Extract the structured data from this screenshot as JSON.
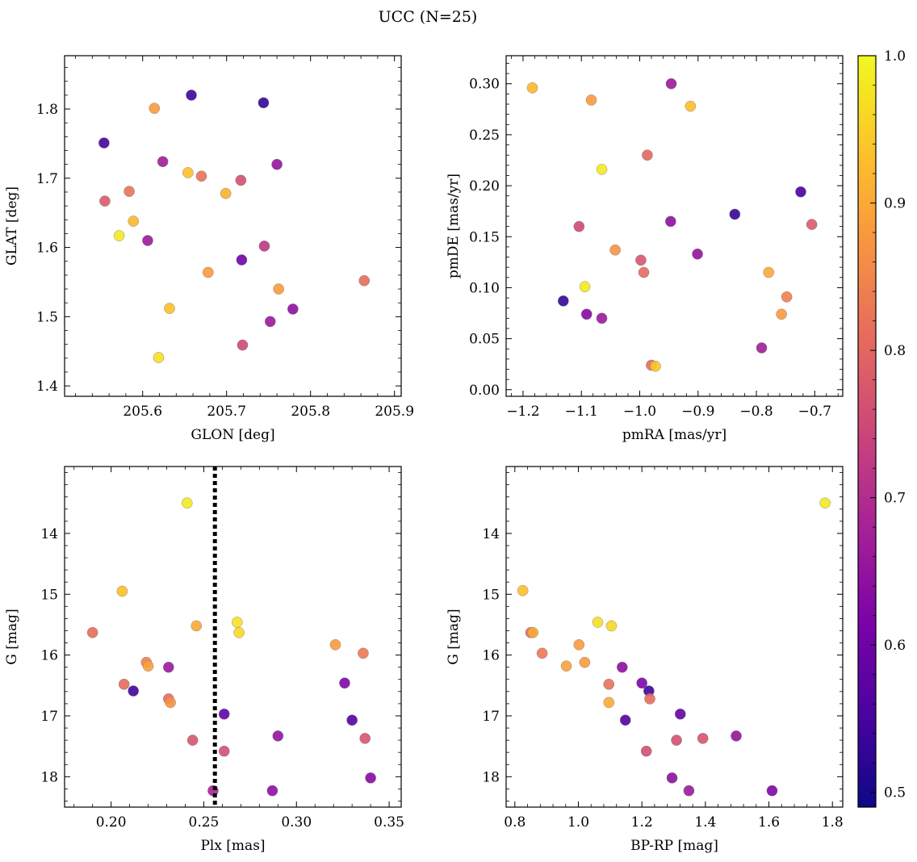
{
  "title": "UCC (N=25)",
  "colormap": "plasma",
  "colorbar": {
    "min": 0.49,
    "max": 1.0,
    "ticks": [
      0.5,
      0.6,
      0.7,
      0.8,
      0.9,
      1.0
    ],
    "tick_labels": [
      "0.5",
      "0.6",
      "0.7",
      "0.8",
      "0.9",
      "1.0"
    ]
  },
  "chart_data": [
    {
      "type": "scatter",
      "name": "glon-glat",
      "xlabel": "GLON [deg]",
      "ylabel": "GLAT [deg]",
      "xlim": [
        205.507,
        205.908
      ],
      "ylim": [
        1.385,
        1.877
      ],
      "xticks": [
        205.6,
        205.7,
        205.8,
        205.9
      ],
      "xtick_labels": [
        "205.6",
        "205.7",
        "205.8",
        "205.9"
      ],
      "yticks": [
        1.4,
        1.5,
        1.6,
        1.7,
        1.8
      ],
      "ytick_labels": [
        "1.4",
        "1.5",
        "1.6",
        "1.7",
        "1.8"
      ],
      "y_inverted": false,
      "points": [
        {
          "x": 205.554,
          "y": 1.751,
          "c": 0.55
        },
        {
          "x": 205.658,
          "y": 1.82,
          "c": 0.54
        },
        {
          "x": 205.744,
          "y": 1.809,
          "c": 0.53
        },
        {
          "x": 205.614,
          "y": 1.801,
          "c": 0.88
        },
        {
          "x": 205.624,
          "y": 1.724,
          "c": 0.67
        },
        {
          "x": 205.654,
          "y": 1.708,
          "c": 0.93
        },
        {
          "x": 205.67,
          "y": 1.703,
          "c": 0.82
        },
        {
          "x": 205.717,
          "y": 1.697,
          "c": 0.76
        },
        {
          "x": 205.76,
          "y": 1.72,
          "c": 0.65
        },
        {
          "x": 205.555,
          "y": 1.667,
          "c": 0.78
        },
        {
          "x": 205.584,
          "y": 1.681,
          "c": 0.82
        },
        {
          "x": 205.699,
          "y": 1.678,
          "c": 0.91
        },
        {
          "x": 205.589,
          "y": 1.638,
          "c": 0.92
        },
        {
          "x": 205.572,
          "y": 1.617,
          "c": 0.98
        },
        {
          "x": 205.606,
          "y": 1.61,
          "c": 0.66
        },
        {
          "x": 205.745,
          "y": 1.602,
          "c": 0.72
        },
        {
          "x": 205.718,
          "y": 1.582,
          "c": 0.6
        },
        {
          "x": 205.678,
          "y": 1.564,
          "c": 0.88
        },
        {
          "x": 205.762,
          "y": 1.54,
          "c": 0.88
        },
        {
          "x": 205.864,
          "y": 1.552,
          "c": 0.81
        },
        {
          "x": 205.632,
          "y": 1.512,
          "c": 0.93
        },
        {
          "x": 205.779,
          "y": 1.511,
          "c": 0.64
        },
        {
          "x": 205.752,
          "y": 1.493,
          "c": 0.66
        },
        {
          "x": 205.719,
          "y": 1.459,
          "c": 0.75
        },
        {
          "x": 205.619,
          "y": 1.441,
          "c": 0.97
        }
      ]
    },
    {
      "type": "scatter",
      "name": "pmra-pmde",
      "xlabel": "pmRA [mas/yr]",
      "ylabel": "pmDE [mas/yr]",
      "xlim": [
        -1.229,
        -0.652
      ],
      "ylim": [
        -0.0065,
        0.3275
      ],
      "xticks": [
        -1.2,
        -1.1,
        -1.0,
        -0.9,
        -0.8,
        -0.7
      ],
      "xtick_labels": [
        "−1.2",
        "−1.1",
        "−1.0",
        "−0.9",
        "−0.8",
        "−0.7"
      ],
      "yticks": [
        0.0,
        0.05,
        0.1,
        0.15,
        0.2,
        0.25,
        0.3
      ],
      "ytick_labels": [
        "0.00",
        "0.05",
        "0.10",
        "0.15",
        "0.20",
        "0.25",
        "0.30"
      ],
      "y_inverted": false,
      "points": [
        {
          "x": -1.184,
          "y": 0.296,
          "c": 0.92
        },
        {
          "x": -1.083,
          "y": 0.284,
          "c": 0.88
        },
        {
          "x": -0.946,
          "y": 0.3,
          "c": 0.66
        },
        {
          "x": -0.913,
          "y": 0.278,
          "c": 0.93
        },
        {
          "x": -0.987,
          "y": 0.23,
          "c": 0.8
        },
        {
          "x": -1.065,
          "y": 0.216,
          "c": 0.98
        },
        {
          "x": -0.724,
          "y": 0.194,
          "c": 0.55
        },
        {
          "x": -1.104,
          "y": 0.16,
          "c": 0.75
        },
        {
          "x": -0.947,
          "y": 0.165,
          "c": 0.64
        },
        {
          "x": -0.837,
          "y": 0.172,
          "c": 0.53
        },
        {
          "x": -0.705,
          "y": 0.162,
          "c": 0.78
        },
        {
          "x": -1.042,
          "y": 0.137,
          "c": 0.87
        },
        {
          "x": -0.998,
          "y": 0.127,
          "c": 0.77
        },
        {
          "x": -0.901,
          "y": 0.133,
          "c": 0.65
        },
        {
          "x": -0.993,
          "y": 0.115,
          "c": 0.81
        },
        {
          "x": -0.779,
          "y": 0.115,
          "c": 0.9
        },
        {
          "x": -1.094,
          "y": 0.101,
          "c": 0.98
        },
        {
          "x": -0.748,
          "y": 0.091,
          "c": 0.84
        },
        {
          "x": -1.131,
          "y": 0.087,
          "c": 0.53
        },
        {
          "x": -1.091,
          "y": 0.074,
          "c": 0.63
        },
        {
          "x": -1.065,
          "y": 0.07,
          "c": 0.66
        },
        {
          "x": -0.757,
          "y": 0.074,
          "c": 0.88
        },
        {
          "x": -0.791,
          "y": 0.041,
          "c": 0.67
        },
        {
          "x": -0.98,
          "y": 0.024,
          "c": 0.81
        },
        {
          "x": -0.973,
          "y": 0.023,
          "c": 0.94
        }
      ]
    },
    {
      "type": "scatter",
      "name": "plx-g",
      "xlabel": "Plx [mas]",
      "ylabel": "G [mag]",
      "xlim": [
        0.1749,
        0.3565
      ],
      "ylim": [
        12.9,
        18.5
      ],
      "xticks": [
        0.2,
        0.25,
        0.3,
        0.35
      ],
      "xtick_labels": [
        "0.20",
        "0.25",
        "0.30",
        "0.35"
      ],
      "yticks": [
        14,
        15,
        16,
        17,
        18
      ],
      "ytick_labels": [
        "14",
        "15",
        "16",
        "17",
        "18"
      ],
      "y_inverted": true,
      "vline": 0.256,
      "points": [
        {
          "x": 0.241,
          "y": 13.5,
          "c": 0.98
        },
        {
          "x": 0.206,
          "y": 14.95,
          "c": 0.93
        },
        {
          "x": 0.19,
          "y": 15.63,
          "c": 0.81
        },
        {
          "x": 0.246,
          "y": 15.52,
          "c": 0.9
        },
        {
          "x": 0.268,
          "y": 15.46,
          "c": 0.97
        },
        {
          "x": 0.269,
          "y": 15.63,
          "c": 0.96
        },
        {
          "x": 0.321,
          "y": 15.83,
          "c": 0.88
        },
        {
          "x": 0.336,
          "y": 15.97,
          "c": 0.83
        },
        {
          "x": 0.219,
          "y": 16.12,
          "c": 0.84
        },
        {
          "x": 0.22,
          "y": 16.18,
          "c": 0.89
        },
        {
          "x": 0.231,
          "y": 16.2,
          "c": 0.66
        },
        {
          "x": 0.207,
          "y": 16.48,
          "c": 0.81
        },
        {
          "x": 0.212,
          "y": 16.59,
          "c": 0.54
        },
        {
          "x": 0.326,
          "y": 16.46,
          "c": 0.62
        },
        {
          "x": 0.231,
          "y": 16.72,
          "c": 0.81
        },
        {
          "x": 0.232,
          "y": 16.78,
          "c": 0.87
        },
        {
          "x": 0.261,
          "y": 16.97,
          "c": 0.58
        },
        {
          "x": 0.33,
          "y": 17.07,
          "c": 0.56
        },
        {
          "x": 0.29,
          "y": 17.33,
          "c": 0.65
        },
        {
          "x": 0.244,
          "y": 17.4,
          "c": 0.77
        },
        {
          "x": 0.337,
          "y": 17.37,
          "c": 0.77
        },
        {
          "x": 0.261,
          "y": 17.58,
          "c": 0.76
        },
        {
          "x": 0.34,
          "y": 18.02,
          "c": 0.63
        },
        {
          "x": 0.255,
          "y": 18.23,
          "c": 0.68
        },
        {
          "x": 0.287,
          "y": 18.23,
          "c": 0.64
        }
      ]
    },
    {
      "type": "scatter",
      "name": "bprp-g",
      "xlabel": "BP-RP [mag]",
      "ylabel": "G [mag]",
      "xlim": [
        0.7725,
        1.8325
      ],
      "ylim": [
        12.9,
        18.5
      ],
      "xticks": [
        0.8,
        1.0,
        1.2,
        1.4,
        1.6,
        1.8
      ],
      "xtick_labels": [
        "0.8",
        "1.0",
        "1.2",
        "1.4",
        "1.6",
        "1.8"
      ],
      "yticks": [
        14,
        15,
        16,
        17,
        18
      ],
      "ytick_labels": [
        "14",
        "15",
        "16",
        "17",
        "18"
      ],
      "y_inverted": true,
      "points": [
        {
          "x": 1.777,
          "y": 13.5,
          "c": 0.98
        },
        {
          "x": 0.825,
          "y": 14.94,
          "c": 0.93
        },
        {
          "x": 0.85,
          "y": 15.63,
          "c": 0.81
        },
        {
          "x": 0.857,
          "y": 15.63,
          "c": 0.9
        },
        {
          "x": 1.061,
          "y": 15.46,
          "c": 0.97
        },
        {
          "x": 1.104,
          "y": 15.52,
          "c": 0.96
        },
        {
          "x": 1.002,
          "y": 15.83,
          "c": 0.88
        },
        {
          "x": 0.886,
          "y": 15.97,
          "c": 0.83
        },
        {
          "x": 0.962,
          "y": 16.18,
          "c": 0.89
        },
        {
          "x": 1.02,
          "y": 16.12,
          "c": 0.88
        },
        {
          "x": 1.138,
          "y": 16.2,
          "c": 0.64
        },
        {
          "x": 1.096,
          "y": 16.48,
          "c": 0.82
        },
        {
          "x": 1.2,
          "y": 16.46,
          "c": 0.62
        },
        {
          "x": 1.222,
          "y": 16.59,
          "c": 0.54
        },
        {
          "x": 1.225,
          "y": 16.72,
          "c": 0.81
        },
        {
          "x": 1.096,
          "y": 16.78,
          "c": 0.9
        },
        {
          "x": 1.321,
          "y": 16.97,
          "c": 0.58
        },
        {
          "x": 1.148,
          "y": 17.07,
          "c": 0.56
        },
        {
          "x": 1.497,
          "y": 17.33,
          "c": 0.65
        },
        {
          "x": 1.392,
          "y": 17.37,
          "c": 0.77
        },
        {
          "x": 1.309,
          "y": 17.4,
          "c": 0.76
        },
        {
          "x": 1.214,
          "y": 17.58,
          "c": 0.76
        },
        {
          "x": 1.295,
          "y": 18.02,
          "c": 0.64
        },
        {
          "x": 1.348,
          "y": 18.23,
          "c": 0.66
        },
        {
          "x": 1.61,
          "y": 18.23,
          "c": 0.62
        }
      ]
    }
  ]
}
